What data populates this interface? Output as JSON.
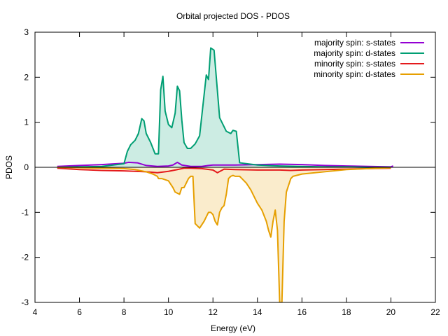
{
  "chart_data": {
    "type": "area",
    "title": "Orbital projected DOS - PDOS",
    "xlabel": "Energy (eV)",
    "ylabel": "PDOS",
    "xlim": [
      4,
      22
    ],
    "ylim": [
      -3,
      3
    ],
    "xticks": [
      4,
      6,
      8,
      10,
      12,
      14,
      16,
      18,
      20,
      22
    ],
    "yticks": [
      -3,
      -2,
      -1,
      0,
      1,
      2,
      3
    ],
    "grid": false,
    "legend_position": "top-right",
    "zero_line": true,
    "series": [
      {
        "name": "majority spin: s-states",
        "color": "#9400d3",
        "fill": false,
        "x": [
          5.0,
          6.0,
          7.0,
          8.0,
          8.2,
          8.6,
          9.0,
          9.5,
          10.0,
          10.2,
          10.4,
          10.6,
          11.0,
          11.5,
          11.8,
          12.0,
          13.0,
          14.0,
          15.0,
          16.0,
          17.0,
          18.0,
          19.0,
          20.0,
          20.1
        ],
        "y": [
          0.02,
          0.04,
          0.06,
          0.09,
          0.11,
          0.1,
          0.04,
          0.02,
          0.03,
          0.05,
          0.11,
          0.05,
          0.02,
          0.02,
          0.04,
          0.05,
          0.05,
          0.06,
          0.07,
          0.06,
          0.04,
          0.03,
          0.02,
          0.01,
          0.03
        ]
      },
      {
        "name": "majority spin: d-states",
        "color": "#009e73",
        "fill": true,
        "x": [
          5.0,
          7.0,
          8.0,
          8.15,
          8.3,
          8.5,
          8.65,
          8.8,
          8.9,
          9.0,
          9.2,
          9.4,
          9.55,
          9.65,
          9.75,
          9.85,
          10.0,
          10.15,
          10.3,
          10.4,
          10.5,
          10.6,
          10.7,
          10.85,
          11.0,
          11.2,
          11.4,
          11.6,
          11.7,
          11.8,
          11.9,
          12.05,
          12.3,
          12.5,
          12.6,
          12.8,
          12.9,
          13.05,
          13.2,
          14.0,
          15.0,
          16.0,
          17.0,
          18.0,
          19.0,
          20.0
        ],
        "y": [
          0.0,
          0.02,
          0.08,
          0.35,
          0.5,
          0.6,
          0.75,
          1.08,
          1.03,
          0.75,
          0.55,
          0.3,
          0.3,
          1.72,
          2.02,
          1.25,
          0.95,
          0.88,
          1.2,
          1.8,
          1.7,
          1.05,
          0.55,
          0.42,
          0.42,
          0.52,
          0.7,
          1.6,
          2.05,
          1.95,
          2.65,
          2.6,
          1.1,
          0.9,
          0.8,
          0.75,
          0.82,
          0.8,
          0.1,
          0.05,
          0.03,
          0.02,
          0.01,
          0.01,
          0.0,
          0.0
        ]
      },
      {
        "name": "minority spin: s-states",
        "color": "#e41a1c",
        "fill": false,
        "x": [
          5.0,
          6.0,
          7.0,
          8.0,
          9.0,
          9.5,
          10.0,
          10.4,
          10.7,
          11.0,
          11.5,
          12.0,
          12.2,
          12.5,
          13.0,
          14.0,
          15.0,
          15.5,
          16.0,
          17.0,
          18.0,
          19.0,
          20.0
        ],
        "y": [
          -0.02,
          -0.05,
          -0.07,
          -0.08,
          -0.1,
          -0.12,
          -0.09,
          -0.05,
          -0.02,
          -0.02,
          -0.03,
          -0.06,
          -0.12,
          -0.04,
          -0.05,
          -0.06,
          -0.06,
          -0.07,
          -0.06,
          -0.05,
          -0.04,
          -0.03,
          -0.02
        ]
      },
      {
        "name": "minority spin: d-states",
        "color": "#e69f00",
        "fill": true,
        "x": [
          5.0,
          7.0,
          8.0,
          8.5,
          9.0,
          9.3,
          9.5,
          9.55,
          9.6,
          9.7,
          10.0,
          10.2,
          10.3,
          10.5,
          10.6,
          10.7,
          10.8,
          10.9,
          11.0,
          11.1,
          11.2,
          11.4,
          11.6,
          11.8,
          11.9,
          12.0,
          12.1,
          12.2,
          12.3,
          12.4,
          12.5,
          12.6,
          12.7,
          12.8,
          12.9,
          13.0,
          13.2,
          13.3,
          13.4,
          13.5,
          13.7,
          13.9,
          14.0,
          14.2,
          14.4,
          14.5,
          14.6,
          14.7,
          14.8,
          14.9,
          15.0,
          15.1,
          15.2,
          15.3,
          15.4,
          15.5,
          15.6,
          16.0,
          17.0,
          18.0,
          19.0,
          20.0
        ],
        "y": [
          0.0,
          -0.02,
          -0.03,
          -0.05,
          -0.1,
          -0.15,
          -0.2,
          -0.25,
          -0.25,
          -0.25,
          -0.3,
          -0.45,
          -0.55,
          -0.6,
          -0.45,
          -0.45,
          -0.35,
          -0.25,
          -0.2,
          -0.2,
          -1.25,
          -1.35,
          -1.2,
          -1.0,
          -1.0,
          -1.05,
          -1.2,
          -1.28,
          -1.0,
          -0.9,
          -0.85,
          -0.6,
          -0.25,
          -0.2,
          -0.18,
          -0.2,
          -0.2,
          -0.25,
          -0.3,
          -0.35,
          -0.5,
          -0.7,
          -0.8,
          -0.95,
          -1.2,
          -1.4,
          -1.55,
          -1.2,
          -0.95,
          -1.4,
          -3.0,
          -3.0,
          -1.2,
          -0.55,
          -0.4,
          -0.25,
          -0.2,
          -0.15,
          -0.1,
          -0.05,
          -0.03,
          -0.01
        ]
      }
    ]
  }
}
